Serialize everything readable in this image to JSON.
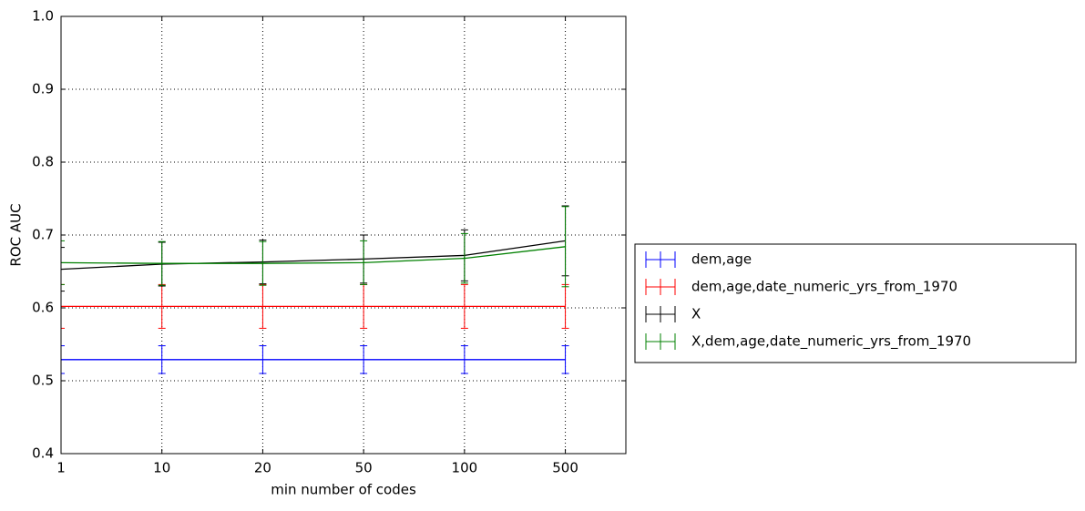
{
  "chart_data": {
    "type": "line",
    "xlabel": "min number of codes",
    "ylabel": "ROC AUC",
    "categories": [
      "1",
      "10",
      "20",
      "50",
      "100",
      "500"
    ],
    "series": [
      {
        "name": "dem,age",
        "color": "#0000ff",
        "values": [
          0.529,
          0.529,
          0.529,
          0.529,
          0.529,
          0.529
        ],
        "errors": [
          0.019,
          0.019,
          0.019,
          0.019,
          0.019,
          0.019
        ]
      },
      {
        "name": "dem,age,date_numeric_yrs_from_1970",
        "color": "#ff0000",
        "values": [
          0.602,
          0.602,
          0.602,
          0.602,
          0.602,
          0.602
        ],
        "errors": [
          0.03,
          0.03,
          0.03,
          0.03,
          0.03,
          0.03
        ]
      },
      {
        "name": "X",
        "color": "#000000",
        "values": [
          0.653,
          0.66,
          0.663,
          0.667,
          0.672,
          0.692
        ],
        "errors": [
          0.03,
          0.03,
          0.03,
          0.033,
          0.035,
          0.048
        ]
      },
      {
        "name": "X,dem,age,date_numeric_yrs_from_1970",
        "color": "#008000",
        "values": [
          0.662,
          0.661,
          0.661,
          0.662,
          0.668,
          0.684
        ],
        "errors": [
          0.03,
          0.03,
          0.03,
          0.03,
          0.034,
          0.055
        ]
      }
    ],
    "ylim": [
      0.4,
      1.0
    ],
    "yticks": [
      0.4,
      0.5,
      0.6,
      0.7,
      0.8,
      0.9,
      {
        "value": 1.0,
        "label": "1.0"
      }
    ],
    "grid": true,
    "legend": "right"
  }
}
